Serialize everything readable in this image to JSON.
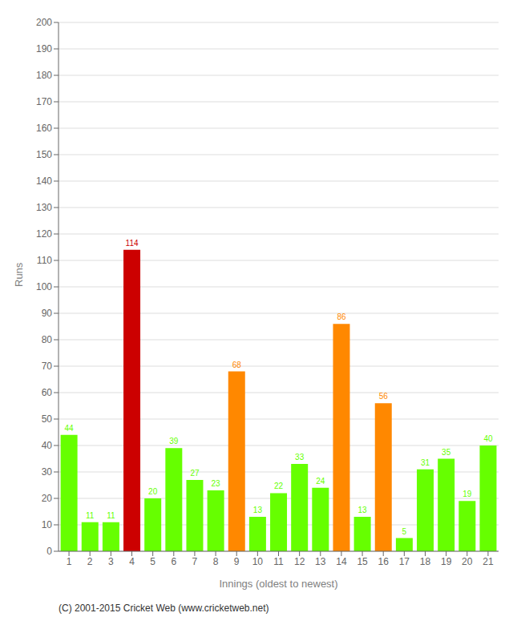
{
  "chart_data": {
    "type": "bar",
    "categories": [
      1,
      2,
      3,
      4,
      5,
      6,
      7,
      8,
      9,
      10,
      11,
      12,
      13,
      14,
      15,
      16,
      17,
      18,
      19,
      20,
      21
    ],
    "values": [
      44,
      11,
      11,
      114,
      20,
      39,
      27,
      23,
      68,
      13,
      22,
      33,
      24,
      86,
      13,
      56,
      5,
      31,
      35,
      19,
      40
    ],
    "colors": [
      "#66ff00",
      "#66ff00",
      "#66ff00",
      "#cc0000",
      "#66ff00",
      "#66ff00",
      "#66ff00",
      "#66ff00",
      "#ff8800",
      "#66ff00",
      "#66ff00",
      "#66ff00",
      "#66ff00",
      "#ff8800",
      "#66ff00",
      "#ff8800",
      "#66ff00",
      "#66ff00",
      "#66ff00",
      "#66ff00",
      "#66ff00"
    ],
    "xlabel": "Innings (oldest to newest)",
    "ylabel": "Runs",
    "ylim": [
      0,
      200
    ],
    "yticks": [
      0,
      10,
      20,
      30,
      40,
      50,
      60,
      70,
      80,
      90,
      100,
      110,
      120,
      130,
      140,
      150,
      160,
      170,
      180,
      190,
      200
    ],
    "grid": true,
    "data_labels": true,
    "annotations": [
      "(C) 2001-2015 Cricket Web (www.cricketweb.net)"
    ]
  }
}
